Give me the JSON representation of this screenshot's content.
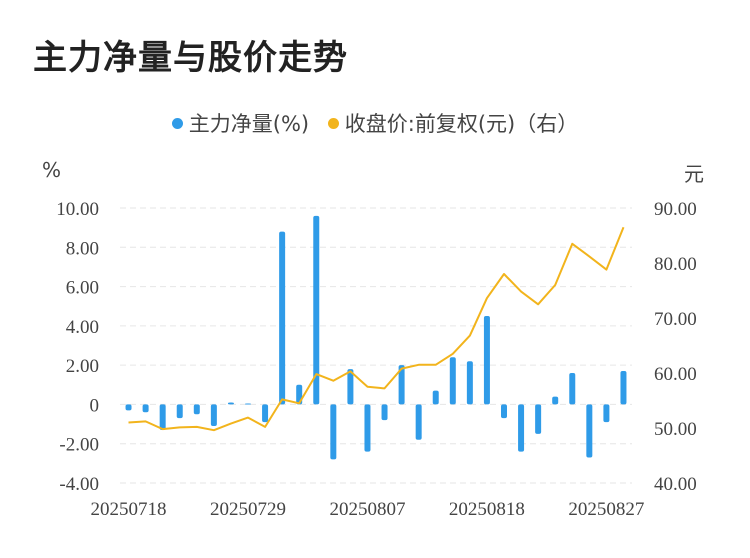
{
  "title": "主力净量与股价走势",
  "chart_data": {
    "type": "bar+line",
    "legend": [
      {
        "name": "主力净量(%)",
        "color": "#2f9be8"
      },
      {
        "name": "收盘价:前复权(元)（右）",
        "color": "#f2b41c"
      }
    ],
    "left_unit": "%",
    "right_unit": "元",
    "left_ylim": [
      -4,
      10
    ],
    "right_ylim": [
      40,
      90
    ],
    "left_ticks": [
      "10.00",
      "8.00",
      "6.00",
      "4.00",
      "2.00",
      "0",
      "-2.00",
      "-4.00"
    ],
    "right_ticks": [
      "90.00",
      "80.00",
      "70.00",
      "60.00",
      "50.00",
      "40.00"
    ],
    "x_tick_labels": [
      "20250718",
      "20250729",
      "20250807",
      "20250818",
      "20250827"
    ],
    "x_tick_indices": [
      0,
      7,
      14,
      21,
      28
    ],
    "series": [
      {
        "name": "主力净量(%)",
        "type": "bar",
        "values": [
          -0.3,
          -0.4,
          -1.3,
          -0.7,
          -0.5,
          -1.1,
          0.1,
          0.05,
          -0.9,
          8.8,
          1.0,
          9.6,
          -2.8,
          1.8,
          -2.4,
          -0.8,
          2.0,
          -1.8,
          0.7,
          2.4,
          2.2,
          4.5,
          -0.7,
          -2.4,
          -1.5,
          0.4,
          1.6,
          -2.7,
          -0.9,
          1.7
        ]
      },
      {
        "name": "收盘价:前复权(元)（右）",
        "type": "line",
        "values": [
          51.0,
          51.2,
          49.8,
          50.1,
          50.2,
          49.6,
          50.8,
          51.9,
          50.2,
          55.2,
          54.5,
          59.8,
          58.6,
          60.3,
          57.5,
          57.2,
          60.8,
          61.5,
          61.5,
          63.5,
          66.8,
          73.6,
          78.0,
          74.8,
          72.5,
          76.0,
          83.5,
          81.2,
          78.8,
          86.5
        ]
      }
    ]
  }
}
